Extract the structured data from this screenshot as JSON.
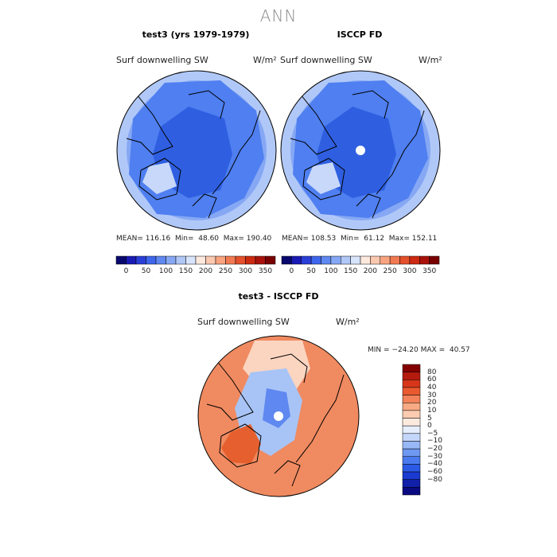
{
  "page_title": "ANN",
  "panels": [
    {
      "title": "test3 (yrs 1979-1979)",
      "variable": "Surf downwelling SW",
      "units": "W/m²",
      "mean_label": "MEAN=",
      "mean": "116.16",
      "min_label": "Min=",
      "min": "48.60",
      "max_label": "Max=",
      "max": "190.40"
    },
    {
      "title": "ISCCP FD",
      "variable": "Surf downwelling SW",
      "units": "W/m²",
      "mean_label": "MEAN=",
      "mean": "108.53",
      "min_label": "Min=",
      "min": "61.12",
      "max_label": "Max=",
      "max": "152.11"
    }
  ],
  "diff_panel": {
    "title": "test3 - ISCCP FD",
    "variable": "Surf downwelling SW",
    "units": "W/m²",
    "min_label": "MIN =",
    "min": "−24.20",
    "max_label": "MAX =",
    "max": "40.57"
  },
  "abs_colorbar": {
    "colors": [
      "#08086e",
      "#1a1ab4",
      "#2a3fd8",
      "#3e66ec",
      "#5f88f0",
      "#86a8f4",
      "#b0c8f8",
      "#d8e4fb",
      "#fde9dd",
      "#fbc9b0",
      "#f8a480",
      "#f27a52",
      "#e5502c",
      "#cc2a12",
      "#a8120a",
      "#780000"
    ],
    "ticks": [
      "0",
      "50",
      "100",
      "150",
      "200",
      "250",
      "300",
      "350"
    ]
  },
  "diff_colorbar": {
    "colors": [
      "#0a0a80",
      "#1020a8",
      "#1a3ad0",
      "#2c5ae6",
      "#4a7aee",
      "#6e98f2",
      "#98b8f6",
      "#c4d6fa",
      "#e6eefd",
      "#fdeadf",
      "#fbcbb2",
      "#f8aa84",
      "#f3825a",
      "#ea5a30",
      "#d8361a",
      "#b51a0e",
      "#840000"
    ],
    "ticks": [
      "80",
      "60",
      "40",
      "30",
      "20",
      "10",
      "5",
      "0",
      "−5",
      "−10",
      "−20",
      "−30",
      "−40",
      "−60",
      "−80"
    ]
  },
  "map_colors": {
    "ocean_abs_dark": "#2f5fe0",
    "ocean_abs_mid": "#4f7ff0",
    "ocean_abs_light": "#86a8f4",
    "ocean_abs_pale": "#b0c8f8",
    "diff_warm": "#f08a60",
    "diff_warm_dark": "#e5602e",
    "diff_pale": "#fbd5c0",
    "diff_cool": "#a8c4f6",
    "diff_cool_dark": "#5f88f0"
  }
}
